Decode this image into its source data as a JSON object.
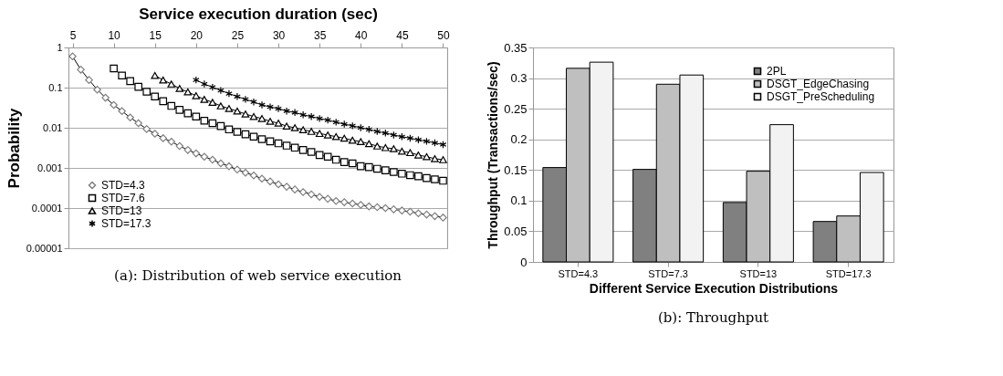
{
  "chart_data": [
    {
      "type": "line",
      "xlabel": "Service execution duration (sec)",
      "ylabel": "Probability",
      "log": "y",
      "grid": "y",
      "legend": "bottom left",
      "line_style": "solid",
      "xlim": [
        4.5,
        50.5
      ],
      "xticks": [
        5,
        10,
        15,
        20,
        25,
        30,
        35,
        40,
        45,
        50
      ],
      "ylim": [
        1e-05,
        1
      ],
      "yticks": [
        {
          "value": 1e-05,
          "label": "0.00001"
        },
        {
          "value": 0.0001,
          "label": "0.0001"
        },
        {
          "value": 0.001,
          "label": "0.001"
        },
        {
          "value": 0.01,
          "label": "0.01"
        },
        {
          "value": 0.1,
          "label": "0.1"
        },
        {
          "value": 1,
          "label": "1"
        }
      ],
      "annotations": [
        "(a): Distribution of web service execution"
      ],
      "series": [
        {
          "name": "STD=4.3",
          "color": "#808080",
          "marker": "diamond",
          "x": [
            5,
            6,
            7,
            8,
            9,
            10,
            11,
            12,
            13,
            14,
            15,
            16,
            17,
            18,
            19,
            20,
            21,
            22,
            23,
            24,
            25,
            26,
            27,
            28,
            29,
            30,
            31,
            32,
            33,
            34,
            35,
            36,
            37,
            38,
            39,
            40,
            41,
            42,
            43,
            44,
            45,
            46,
            47,
            48,
            49,
            50
          ],
          "values": [
            0.6,
            0.28,
            0.155,
            0.089,
            0.056,
            0.037,
            0.026,
            0.018,
            0.013,
            0.0093,
            0.0071,
            0.0055,
            0.0045,
            0.0035,
            0.0028,
            0.0023,
            0.0019,
            0.0016,
            0.0013,
            0.0011,
            0.00091,
            0.00076,
            0.00065,
            0.00054,
            0.00046,
            0.00039,
            0.00034,
            0.00029,
            0.00025,
            0.00022,
            0.00019,
            0.00017,
            0.00015,
            0.00014,
            0.00013,
            0.00012,
            0.00011,
            0.000105,
            0.0001,
            9.3e-05,
            8.7e-05,
            8.1e-05,
            7.4e-05,
            6.9e-05,
            6.3e-05,
            5.8e-05
          ]
        },
        {
          "name": "STD=7.6",
          "color": "#000000",
          "marker": "square",
          "x": [
            10,
            11,
            12,
            13,
            14,
            15,
            16,
            17,
            18,
            19,
            20,
            21,
            22,
            23,
            24,
            25,
            26,
            27,
            28,
            29,
            30,
            31,
            32,
            33,
            34,
            35,
            36,
            37,
            38,
            39,
            40,
            41,
            42,
            43,
            44,
            45,
            46,
            47,
            48,
            49,
            50
          ],
          "values": [
            0.3,
            0.2,
            0.145,
            0.105,
            0.079,
            0.06,
            0.046,
            0.035,
            0.028,
            0.023,
            0.019,
            0.015,
            0.013,
            0.011,
            0.0091,
            0.0079,
            0.0069,
            0.006,
            0.0052,
            0.0046,
            0.0041,
            0.0036,
            0.0032,
            0.0028,
            0.0025,
            0.0021,
            0.0019,
            0.0016,
            0.0014,
            0.0013,
            0.0011,
            0.00105,
            0.00095,
            0.00087,
            0.00079,
            0.00072,
            0.00066,
            0.00062,
            0.00056,
            0.00052,
            0.00048
          ]
        },
        {
          "name": "STD=13",
          "color": "#000000",
          "marker": "triangle",
          "x": [
            15,
            16,
            17,
            18,
            19,
            20,
            21,
            22,
            23,
            24,
            25,
            26,
            27,
            28,
            29,
            30,
            31,
            32,
            33,
            34,
            35,
            36,
            37,
            38,
            39,
            40,
            41,
            42,
            43,
            44,
            45,
            46,
            47,
            48,
            49,
            50
          ],
          "values": [
            0.2,
            0.155,
            0.123,
            0.095,
            0.078,
            0.063,
            0.051,
            0.043,
            0.035,
            0.03,
            0.026,
            0.022,
            0.019,
            0.017,
            0.0145,
            0.013,
            0.011,
            0.01,
            0.0089,
            0.0081,
            0.0072,
            0.0066,
            0.006,
            0.0055,
            0.0049,
            0.0045,
            0.004,
            0.0035,
            0.0032,
            0.003,
            0.0026,
            0.0024,
            0.0021,
            0.0019,
            0.0017,
            0.0016
          ]
        },
        {
          "name": "STD=17.3",
          "color": "#000000",
          "marker": "cross",
          "x": [
            20,
            21,
            22,
            23,
            24,
            25,
            26,
            27,
            28,
            29,
            30,
            31,
            32,
            33,
            34,
            35,
            36,
            37,
            38,
            39,
            40,
            41,
            42,
            43,
            44,
            45,
            46,
            47,
            48,
            49,
            50
          ],
          "values": [
            0.155,
            0.123,
            0.102,
            0.085,
            0.071,
            0.06,
            0.051,
            0.044,
            0.037,
            0.033,
            0.03,
            0.026,
            0.024,
            0.021,
            0.019,
            0.017,
            0.0155,
            0.0138,
            0.0123,
            0.0112,
            0.01,
            0.0091,
            0.0081,
            0.0074,
            0.0066,
            0.006,
            0.0055,
            0.005,
            0.0046,
            0.0042,
            0.0038
          ]
        }
      ]
    },
    {
      "type": "bar",
      "xlabel": "Different Service Execution Distributions",
      "ylabel": "Throughput (Transactions/sec)",
      "grid": "y",
      "legend": "top right",
      "categories": [
        "STD=4.3",
        "STD=7.3",
        "STD=13",
        "STD=17.3"
      ],
      "ylim": [
        0,
        0.35
      ],
      "yticks": [
        0,
        0.05,
        0.1,
        0.15,
        0.2,
        0.25,
        0.3,
        0.35
      ],
      "annotations": [
        "(b): Throughput"
      ],
      "series": [
        {
          "name": "2PL",
          "color": "#808080",
          "values": [
            0.154,
            0.151,
            0.097,
            0.066
          ]
        },
        {
          "name": "DSGT_EdgeChasing",
          "color": "#bfbfbf",
          "values": [
            0.316,
            0.29,
            0.148,
            0.075
          ]
        },
        {
          "name": "DSGT_PreScheduling",
          "color": "#f2f2f2",
          "values": [
            0.326,
            0.305,
            0.224,
            0.146
          ]
        }
      ]
    }
  ]
}
